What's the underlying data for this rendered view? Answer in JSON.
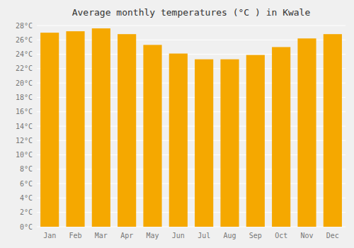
{
  "chart_data": {
    "type": "bar",
    "title": "Average monthly temperatures (°C ) in Kwale",
    "categories": [
      "Jan",
      "Feb",
      "Mar",
      "Apr",
      "May",
      "Jun",
      "Jul",
      "Aug",
      "Sep",
      "Oct",
      "Nov",
      "Dec"
    ],
    "values": [
      27.0,
      27.2,
      27.6,
      26.8,
      25.3,
      24.1,
      23.3,
      23.3,
      23.9,
      25.0,
      26.2,
      26.8
    ],
    "color": "#F5A800",
    "ylim": [
      0,
      28
    ],
    "yticks": [
      {
        "value": 0,
        "label": "0°C"
      },
      {
        "value": 2,
        "label": "2°C"
      },
      {
        "value": 4,
        "label": "4°C"
      },
      {
        "value": 6,
        "label": "6°C"
      },
      {
        "value": 8,
        "label": "8°C"
      },
      {
        "value": 10,
        "label": "10°C"
      },
      {
        "value": 12,
        "label": "12°C"
      },
      {
        "value": 14,
        "label": "14°C"
      },
      {
        "value": 16,
        "label": "16°C"
      },
      {
        "value": 18,
        "label": "18°C"
      },
      {
        "value": 20,
        "label": "20°C"
      },
      {
        "value": 22,
        "label": "22°C"
      },
      {
        "value": 24,
        "label": "24°C"
      },
      {
        "value": 26,
        "label": "26°C"
      },
      {
        "value": 28,
        "label": "28°C"
      }
    ],
    "grid": true
  }
}
